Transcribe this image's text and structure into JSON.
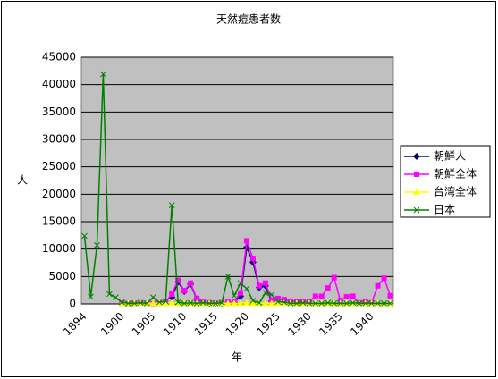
{
  "chart_data": {
    "type": "line",
    "title": "天然痘患者数",
    "x_label": "年",
    "y_label": "人",
    "categories": [
      "1894",
      null,
      null,
      null,
      null,
      null,
      "1900",
      null,
      null,
      null,
      null,
      "1905",
      null,
      null,
      null,
      null,
      "1910",
      null,
      null,
      null,
      null,
      "1915",
      null,
      null,
      null,
      null,
      "1920",
      null,
      null,
      null,
      null,
      "1925",
      null,
      null,
      null,
      null,
      "1930",
      null,
      null,
      null,
      null,
      "1935",
      null,
      null,
      null,
      null,
      "1940",
      null,
      null,
      null
    ],
    "ylim": [
      0,
      45000
    ],
    "yticks": [
      0,
      5000,
      10000,
      15000,
      20000,
      25000,
      30000,
      35000,
      40000,
      45000
    ],
    "grid": true,
    "legend": "right",
    "series": [
      {
        "name": "朝鮮人",
        "color": "#000080",
        "marker": "diamond",
        "values": [
          null,
          null,
          null,
          null,
          null,
          null,
          null,
          null,
          null,
          null,
          null,
          null,
          null,
          null,
          1200,
          4000,
          2300,
          3600,
          900,
          200,
          100,
          100,
          100,
          200,
          300,
          1400,
          10300,
          7600,
          3000,
          3300,
          500,
          null,
          null,
          null,
          null,
          null,
          null,
          null,
          null,
          null,
          null,
          null,
          null,
          null,
          null,
          null,
          null,
          null,
          null,
          null
        ]
      },
      {
        "name": "朝鮮全体",
        "color": "#ff00ff",
        "marker": "square",
        "values": [
          null,
          null,
          null,
          null,
          null,
          null,
          100,
          50,
          100,
          200,
          100,
          50,
          100,
          300,
          1800,
          4300,
          2400,
          3800,
          1000,
          300,
          200,
          100,
          200,
          300,
          400,
          2000,
          11500,
          8300,
          3300,
          3800,
          700,
          1000,
          800,
          500,
          400,
          400,
          400,
          1400,
          1400,
          2900,
          4800,
          600,
          1300,
          1400,
          200,
          500,
          200,
          3300,
          4700,
          1500
        ]
      },
      {
        "name": "台湾全体",
        "color": "#ffff00",
        "marker": "triangle",
        "values": [
          null,
          null,
          null,
          null,
          null,
          null,
          100,
          100,
          100,
          100,
          100,
          100,
          100,
          100,
          200,
          100,
          100,
          100,
          100,
          100,
          100,
          100,
          100,
          100,
          100,
          100,
          200,
          100,
          100,
          100,
          100,
          100,
          100,
          100,
          100,
          100,
          100,
          100,
          100,
          100,
          100,
          100,
          100,
          100,
          100,
          100,
          100,
          100,
          100,
          100
        ]
      },
      {
        "name": "日本",
        "color": "#008000",
        "marker": "x",
        "values": [
          12400,
          1300,
          10700,
          41900,
          1800,
          1200,
          300,
          100,
          100,
          200,
          100,
          1200,
          300,
          500,
          18000,
          300,
          100,
          200,
          100,
          200,
          100,
          100,
          200,
          5000,
          1500,
          3800,
          2800,
          600,
          200,
          2000,
          1700,
          400,
          300,
          100,
          100,
          200,
          100,
          100,
          100,
          200,
          100,
          100,
          100,
          200,
          100,
          100,
          100,
          100,
          100,
          100
        ]
      }
    ]
  }
}
